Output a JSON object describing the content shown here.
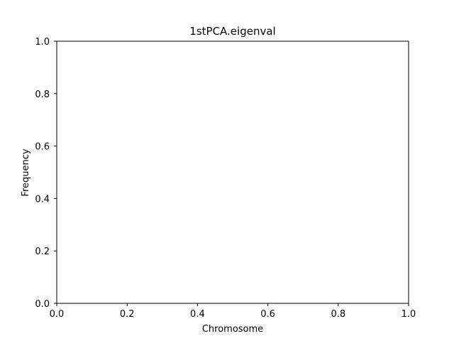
{
  "chart_data": {
    "type": "bar",
    "title": "1stPCA.eigenval",
    "xlabel": "Chromosome",
    "ylabel": "Frequency",
    "xlim": [
      0.0,
      1.0
    ],
    "ylim": [
      0.0,
      1.0
    ],
    "xticks": [
      0.0,
      0.2,
      0.4,
      0.6,
      0.8,
      1.0
    ],
    "yticks": [
      0.0,
      0.2,
      0.4,
      0.6,
      0.8,
      1.0
    ],
    "xtick_labels": [
      "0.0",
      "0.2",
      "0.4",
      "0.6",
      "0.8",
      "1.0"
    ],
    "ytick_labels": [
      "0.0",
      "0.2",
      "0.4",
      "0.6",
      "0.8",
      "1.0"
    ],
    "grid": false,
    "series": []
  }
}
